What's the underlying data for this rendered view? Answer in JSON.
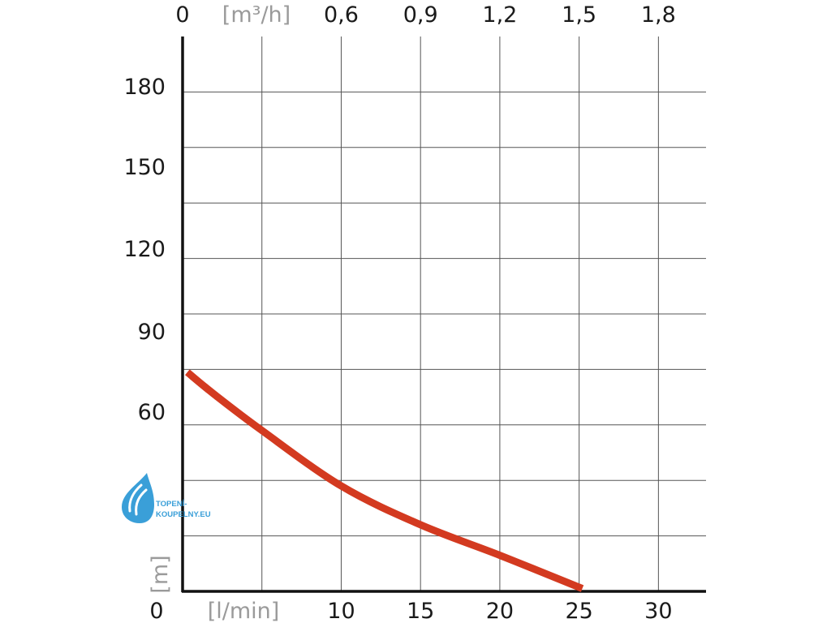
{
  "chart_data": {
    "type": "line",
    "x_bottom": {
      "unit_label": "[l/min]",
      "ticks": [
        "0",
        "10",
        "15",
        "20",
        "25",
        "30"
      ],
      "unit_after_zero": true
    },
    "x_top": {
      "unit_label": "[m³/h]",
      "ticks": [
        "0",
        "0,6",
        "0,9",
        "1,2",
        "1,5",
        "1,8"
      ],
      "unit_after_zero": true
    },
    "y": {
      "unit_label": "[m]",
      "ticks": [
        "60",
        "90",
        "120",
        "150",
        "180"
      ],
      "ylim": [
        0,
        200
      ]
    },
    "xlim": [
      0,
      33
    ],
    "series": [
      {
        "color": "#d33a20",
        "points": [
          [
            0.3,
            79
          ],
          [
            2,
            71
          ],
          [
            5,
            58
          ],
          [
            10,
            38
          ],
          [
            15,
            24
          ],
          [
            20,
            13
          ],
          [
            25.2,
            1
          ]
        ]
      }
    ],
    "grid": true
  },
  "logo": {
    "line1": "TOPENÍ-",
    "line2": "KOUPELNY.EU",
    "color": "#3a9fd8"
  }
}
